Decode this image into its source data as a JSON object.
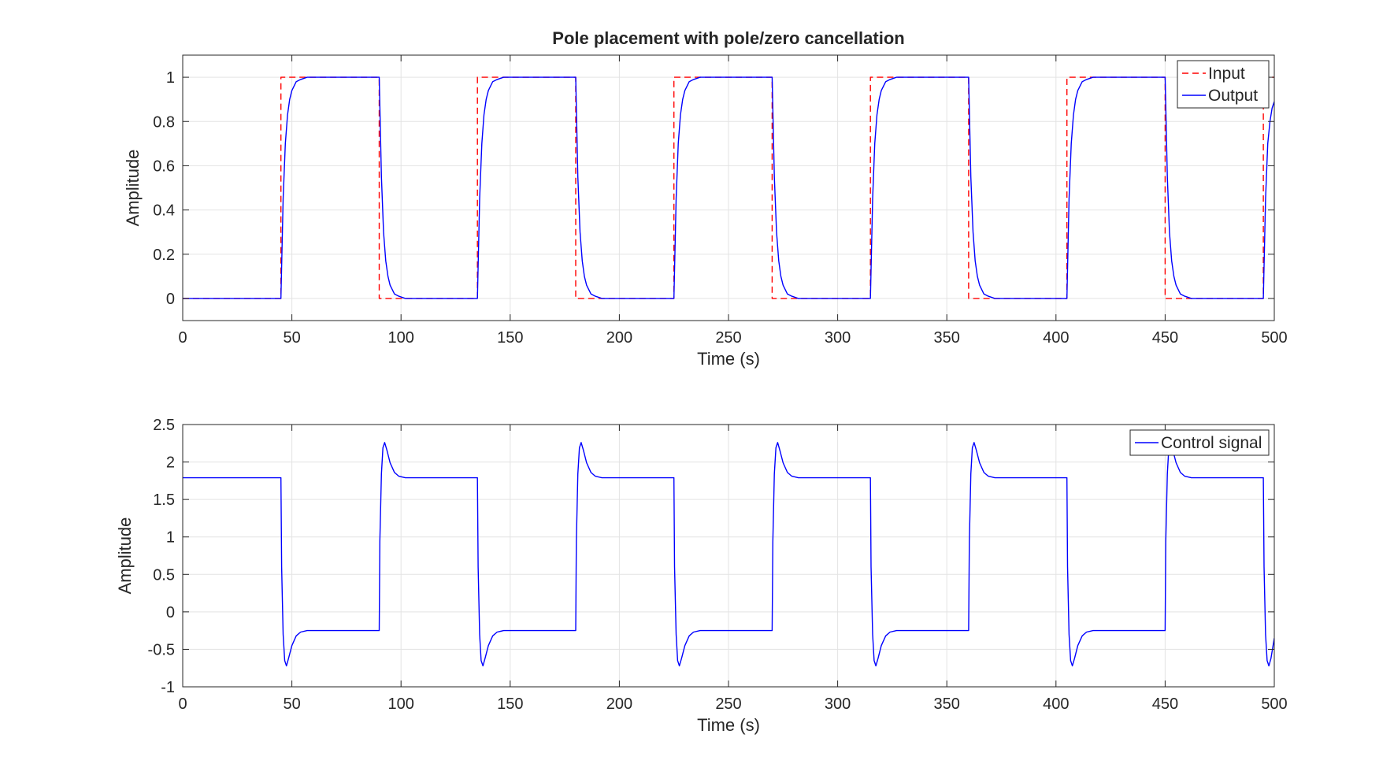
{
  "chart_data": [
    {
      "type": "line",
      "title": "Pole placement with pole/zero cancellation",
      "xlabel": "Time (s)",
      "ylabel": "Amplitude",
      "xlim": [
        0,
        500
      ],
      "ylim": [
        -0.1,
        1.1
      ],
      "xticks": [
        0,
        50,
        100,
        150,
        200,
        250,
        300,
        350,
        400,
        450,
        500
      ],
      "yticks": [
        0,
        0.2,
        0.4,
        0.6,
        0.8,
        1
      ],
      "ytick_labels": [
        "0",
        "0.2",
        "0.4",
        "0.6",
        "0.8",
        "1"
      ],
      "grid": true,
      "legend_position": "top-right",
      "series": [
        {
          "name": "Input",
          "color": "#ff0000",
          "style": "dashed",
          "x": [
            0,
            45,
            45,
            90,
            90,
            135,
            135,
            180,
            180,
            225,
            225,
            270,
            270,
            315,
            315,
            360,
            360,
            405,
            405,
            450,
            450,
            495,
            495,
            500
          ],
          "y": [
            0,
            0,
            1,
            1,
            0,
            0,
            1,
            1,
            0,
            0,
            1,
            1,
            0,
            0,
            1,
            1,
            0,
            0,
            1,
            1,
            0,
            0,
            1,
            1
          ]
        },
        {
          "name": "Output",
          "color": "#0000ff",
          "style": "solid",
          "x": [
            0,
            45,
            46,
            47,
            48,
            49,
            50,
            52,
            54,
            57,
            60,
            90,
            91,
            92,
            93,
            94,
            95,
            97,
            99,
            102,
            105,
            135,
            136,
            137,
            138,
            139,
            140,
            142,
            144,
            147,
            150,
            180,
            181,
            182,
            183,
            184,
            185,
            187,
            189,
            192,
            195,
            225,
            226,
            227,
            228,
            229,
            230,
            232,
            234,
            237,
            240,
            270,
            271,
            272,
            273,
            274,
            275,
            277,
            279,
            282,
            285,
            315,
            316,
            317,
            318,
            319,
            320,
            322,
            324,
            327,
            330,
            360,
            361,
            362,
            363,
            364,
            365,
            367,
            369,
            372,
            375,
            405,
            406,
            407,
            408,
            409,
            410,
            412,
            414,
            417,
            420,
            450,
            451,
            452,
            453,
            454,
            455,
            457,
            459,
            462,
            465,
            495,
            496,
            497,
            498,
            499,
            500
          ],
          "y": [
            0,
            0,
            0.45,
            0.7,
            0.83,
            0.9,
            0.94,
            0.98,
            0.99,
            1.0,
            1.0,
            1.0,
            0.55,
            0.3,
            0.17,
            0.1,
            0.06,
            0.02,
            0.01,
            0,
            0,
            0,
            0.45,
            0.7,
            0.83,
            0.9,
            0.94,
            0.98,
            0.99,
            1.0,
            1.0,
            1.0,
            0.55,
            0.3,
            0.17,
            0.1,
            0.06,
            0.02,
            0.01,
            0,
            0,
            0,
            0.45,
            0.7,
            0.83,
            0.9,
            0.94,
            0.98,
            0.99,
            1.0,
            1.0,
            1.0,
            0.55,
            0.3,
            0.17,
            0.1,
            0.06,
            0.02,
            0.01,
            0,
            0,
            0,
            0.45,
            0.7,
            0.83,
            0.9,
            0.94,
            0.98,
            0.99,
            1.0,
            1.0,
            1.0,
            0.55,
            0.3,
            0.17,
            0.1,
            0.06,
            0.02,
            0.01,
            0,
            0,
            0,
            0.45,
            0.7,
            0.83,
            0.9,
            0.94,
            0.98,
            0.99,
            1.0,
            1.0,
            1.0,
            0.55,
            0.3,
            0.17,
            0.1,
            0.06,
            0.02,
            0.01,
            0,
            0,
            0,
            0.45,
            0.7,
            0.8,
            0.86,
            0.89
          ]
        }
      ]
    },
    {
      "type": "line",
      "title": "",
      "xlabel": "Time (s)",
      "ylabel": "Amplitude",
      "xlim": [
        0,
        500
      ],
      "ylim": [
        -1,
        2.5
      ],
      "xticks": [
        0,
        50,
        100,
        150,
        200,
        250,
        300,
        350,
        400,
        450,
        500
      ],
      "yticks": [
        -1,
        -0.5,
        0,
        0.5,
        1,
        1.5,
        2,
        2.5
      ],
      "ytick_labels": [
        "-1",
        "-0.5",
        "0",
        "0.5",
        "1",
        "1.5",
        "2",
        "2.5"
      ],
      "grid": true,
      "legend_position": "top-right",
      "series": [
        {
          "name": "Control signal",
          "color": "#0000ff",
          "style": "solid",
          "x": [
            0,
            45,
            45.3,
            46,
            46.7,
            47.5,
            48.5,
            50,
            52,
            54,
            57,
            90,
            90.3,
            91,
            91.7,
            92.5,
            93.5,
            95,
            97,
            99,
            102,
            135,
            135.3,
            136,
            136.7,
            137.5,
            138.5,
            140,
            142,
            144,
            147,
            180,
            180.3,
            181,
            181.7,
            182.5,
            183.5,
            185,
            187,
            189,
            192,
            225,
            225.3,
            226,
            226.7,
            227.5,
            228.5,
            230,
            232,
            234,
            237,
            270,
            270.3,
            271,
            271.7,
            272.5,
            273.5,
            275,
            277,
            279,
            282,
            315,
            315.3,
            316,
            316.7,
            317.5,
            318.5,
            320,
            322,
            324,
            327,
            360,
            360.3,
            361,
            361.7,
            362.5,
            363.5,
            365,
            367,
            369,
            372,
            405,
            405.3,
            406,
            406.7,
            407.5,
            408.5,
            410,
            412,
            414,
            417,
            450,
            450.3,
            451,
            451.7,
            452.5,
            453.5,
            455,
            457,
            459,
            462,
            495,
            495.3,
            496,
            496.7,
            497.5,
            498.5,
            500
          ],
          "y": [
            1.79,
            1.79,
            0.6,
            -0.3,
            -0.65,
            -0.72,
            -0.62,
            -0.45,
            -0.32,
            -0.27,
            -0.25,
            -0.25,
            0.94,
            1.84,
            2.19,
            2.26,
            2.16,
            1.99,
            1.86,
            1.81,
            1.79,
            1.79,
            0.6,
            -0.3,
            -0.65,
            -0.72,
            -0.62,
            -0.45,
            -0.32,
            -0.27,
            -0.25,
            -0.25,
            0.94,
            1.84,
            2.19,
            2.26,
            2.16,
            1.99,
            1.86,
            1.81,
            1.79,
            1.79,
            0.6,
            -0.3,
            -0.65,
            -0.72,
            -0.62,
            -0.45,
            -0.32,
            -0.27,
            -0.25,
            -0.25,
            0.94,
            1.84,
            2.19,
            2.26,
            2.16,
            1.99,
            1.86,
            1.81,
            1.79,
            1.79,
            0.6,
            -0.3,
            -0.65,
            -0.72,
            -0.62,
            -0.45,
            -0.32,
            -0.27,
            -0.25,
            -0.25,
            0.94,
            1.84,
            2.19,
            2.26,
            2.16,
            1.99,
            1.86,
            1.81,
            1.79,
            1.79,
            0.6,
            -0.3,
            -0.65,
            -0.72,
            -0.62,
            -0.45,
            -0.32,
            -0.27,
            -0.25,
            -0.25,
            0.94,
            1.84,
            2.19,
            2.26,
            2.16,
            1.99,
            1.86,
            1.81,
            1.79,
            1.79,
            0.6,
            -0.3,
            -0.65,
            -0.72,
            -0.62,
            -0.35
          ]
        }
      ]
    }
  ]
}
